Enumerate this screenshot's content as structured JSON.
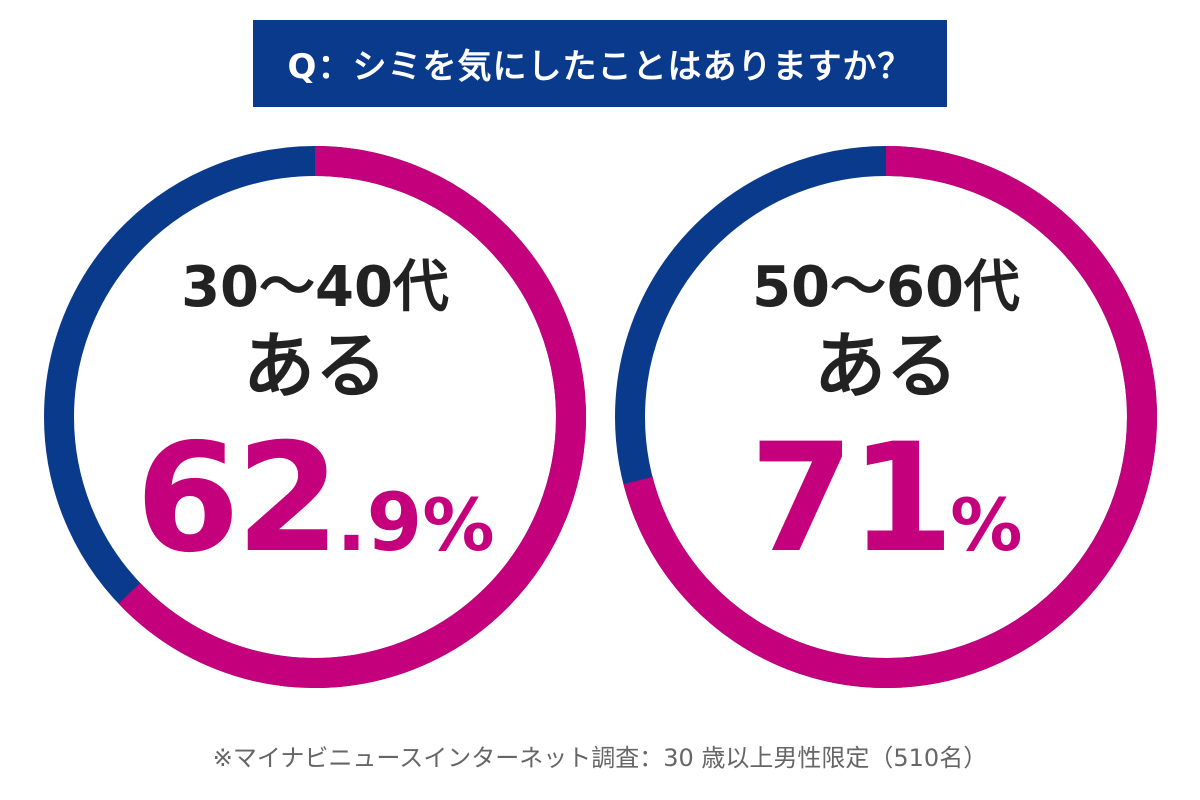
{
  "question": "Q：シミを気にしたことはありますか？",
  "colors": {
    "accent_blue": "#0a3a8c",
    "accent_magenta": "#c4007c"
  },
  "charts": [
    {
      "age_label": "30～40代",
      "answer_label": "ある",
      "percent_main": "62",
      "percent_decimal": ".9",
      "percent_symbol": "%"
    },
    {
      "age_label": "50～60代",
      "answer_label": "ある",
      "percent_main": "71",
      "percent_decimal": "",
      "percent_symbol": "%"
    }
  ],
  "footnote": "※マイナビニュースインターネット調査：30 歳以上男性限定（510名）",
  "chart_data": [
    {
      "type": "pie",
      "categories": [
        "ある",
        ""
      ],
      "values": [
        62.9,
        37.1
      ],
      "title": "30～40代"
    },
    {
      "type": "pie",
      "categories": [
        "ある",
        ""
      ],
      "values": [
        71,
        29
      ],
      "title": "50～60代"
    }
  ]
}
